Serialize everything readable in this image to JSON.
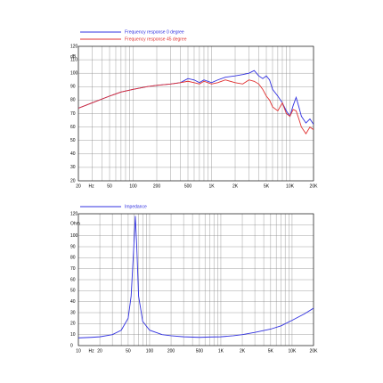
{
  "chart_data": [
    {
      "type": "line",
      "xscale": "log",
      "grid": true,
      "xlabel": "Hz",
      "ylabel": "dB",
      "xlim": [
        20,
        20000
      ],
      "ylim": [
        20,
        120
      ],
      "xticks": [
        20,
        50,
        100,
        200,
        500,
        {
          "value": 1000,
          "label": "1K"
        },
        {
          "value": 2000,
          "label": "2K"
        },
        {
          "value": 5000,
          "label": "5K"
        },
        {
          "value": 10000,
          "label": "10K"
        },
        {
          "value": 20000,
          "label": "20K"
        }
      ],
      "xgrid": [
        20,
        30,
        40,
        50,
        60,
        70,
        80,
        90,
        100,
        200,
        300,
        400,
        500,
        600,
        700,
        800,
        900,
        1000,
        2000,
        3000,
        4000,
        5000,
        6000,
        7000,
        8000,
        9000,
        10000,
        20000
      ],
      "yticks": [
        20,
        30,
        40,
        50,
        60,
        70,
        80,
        90,
        100,
        110,
        120
      ],
      "x": [
        20,
        30,
        50,
        70,
        100,
        150,
        200,
        300,
        400,
        500,
        600,
        700,
        800,
        1000,
        1200,
        1500,
        2000,
        2500,
        3000,
        3500,
        4000,
        4500,
        5000,
        5500,
        6000,
        7000,
        8000,
        9000,
        10000,
        11000,
        12000,
        13000,
        14000,
        16000,
        18000,
        20000
      ],
      "series": [
        {
          "name": "Frequency response 0 degree",
          "color": "#3030e0",
          "values": [
            74,
            78,
            83,
            86,
            88,
            90,
            91,
            92,
            93,
            96,
            95,
            93,
            95,
            93,
            95,
            97,
            98,
            99,
            100,
            102,
            98,
            96,
            98,
            95,
            88,
            83,
            78,
            72,
            68,
            76,
            82,
            75,
            68,
            63,
            66,
            62
          ]
        },
        {
          "name": "Frequency response 45 degree",
          "color": "#e03030",
          "values": [
            74,
            78,
            83,
            86,
            88,
            90,
            91,
            92,
            93,
            94,
            93,
            92,
            94,
            92,
            93,
            95,
            93,
            92,
            95,
            94,
            92,
            88,
            83,
            80,
            75,
            72,
            78,
            70,
            68,
            73,
            72,
            66,
            60,
            55,
            60,
            58
          ]
        }
      ]
    },
    {
      "type": "line",
      "xscale": "log",
      "grid": true,
      "xlabel": "Hz",
      "ylabel": "Ohm",
      "xlim": [
        10,
        20000
      ],
      "ylim": [
        0,
        120
      ],
      "xticks": [
        10,
        20,
        50,
        100,
        200,
        500,
        {
          "value": 1000,
          "label": "1K"
        },
        {
          "value": 2000,
          "label": "2K"
        },
        {
          "value": 5000,
          "label": "5K"
        },
        {
          "value": 10000,
          "label": "10K"
        },
        {
          "value": 20000,
          "label": "20K"
        }
      ],
      "xgrid": [
        10,
        20,
        30,
        40,
        50,
        60,
        70,
        80,
        90,
        100,
        200,
        300,
        400,
        500,
        600,
        700,
        800,
        900,
        1000,
        2000,
        3000,
        4000,
        5000,
        6000,
        7000,
        8000,
        9000,
        10000,
        20000
      ],
      "yticks": [
        0,
        10,
        20,
        30,
        40,
        50,
        60,
        70,
        80,
        90,
        100,
        120
      ],
      "ygrid": [
        0,
        10,
        20,
        30,
        40,
        50,
        60,
        70,
        80,
        90,
        100,
        110,
        120
      ],
      "x": [
        10,
        15,
        20,
        30,
        40,
        50,
        55,
        60,
        63,
        66,
        70,
        80,
        100,
        150,
        200,
        300,
        500,
        700,
        1000,
        1500,
        2000,
        3000,
        5000,
        7000,
        10000,
        15000,
        20000
      ],
      "series": [
        {
          "name": "Impedance",
          "color": "#3030e0",
          "values": [
            7,
            7.5,
            8,
            10,
            14,
            25,
            45,
            90,
            118,
            90,
            45,
            22,
            14,
            10,
            9,
            8,
            7.5,
            7.8,
            8,
            9,
            10,
            12,
            15,
            18,
            23,
            29,
            34
          ]
        }
      ]
    }
  ]
}
